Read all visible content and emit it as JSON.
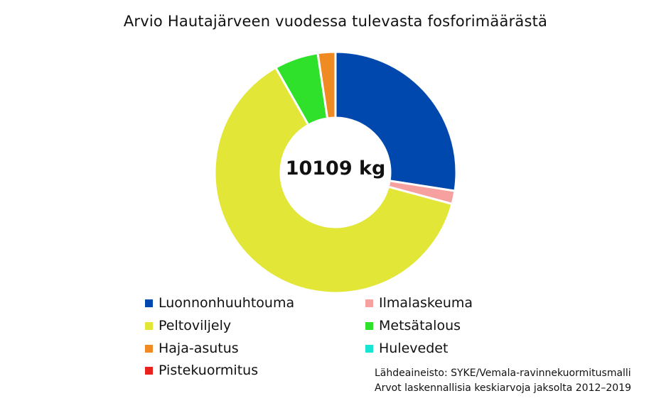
{
  "chart_data": {
    "type": "pie",
    "title": "Arvio Hautajärveen vuodessa tulevasta fosforimäärästä",
    "center_label": "10109 kg",
    "donut": true,
    "legend_placement": "bottom",
    "series": [
      {
        "name": "Luonnonhuuhtouma",
        "value": 28.0,
        "color": "#0048ad"
      },
      {
        "name": "Ilmalaskeuma",
        "value": 1.8,
        "color": "#f6a0a0"
      },
      {
        "name": "Peltoviljely",
        "value": 63.8,
        "color": "#e2e636"
      },
      {
        "name": "Metsätalous",
        "value": 6.0,
        "color": "#2fe12a"
      },
      {
        "name": "Haja-asutus",
        "value": 2.4,
        "color": "#f08a22"
      },
      {
        "name": "Hulevedet",
        "value": 0,
        "color": "#18e4d2"
      },
      {
        "name": "Pistekuormitus",
        "value": 0,
        "color": "#e8221c"
      }
    ],
    "unit": "%"
  },
  "source": {
    "line1": "Lähdeaineisto: SYKE/Vemala-ravinnekuormitusmalli",
    "line2": "Arvot laskennallisia keskiarvoja jaksolta 2012–2019"
  }
}
